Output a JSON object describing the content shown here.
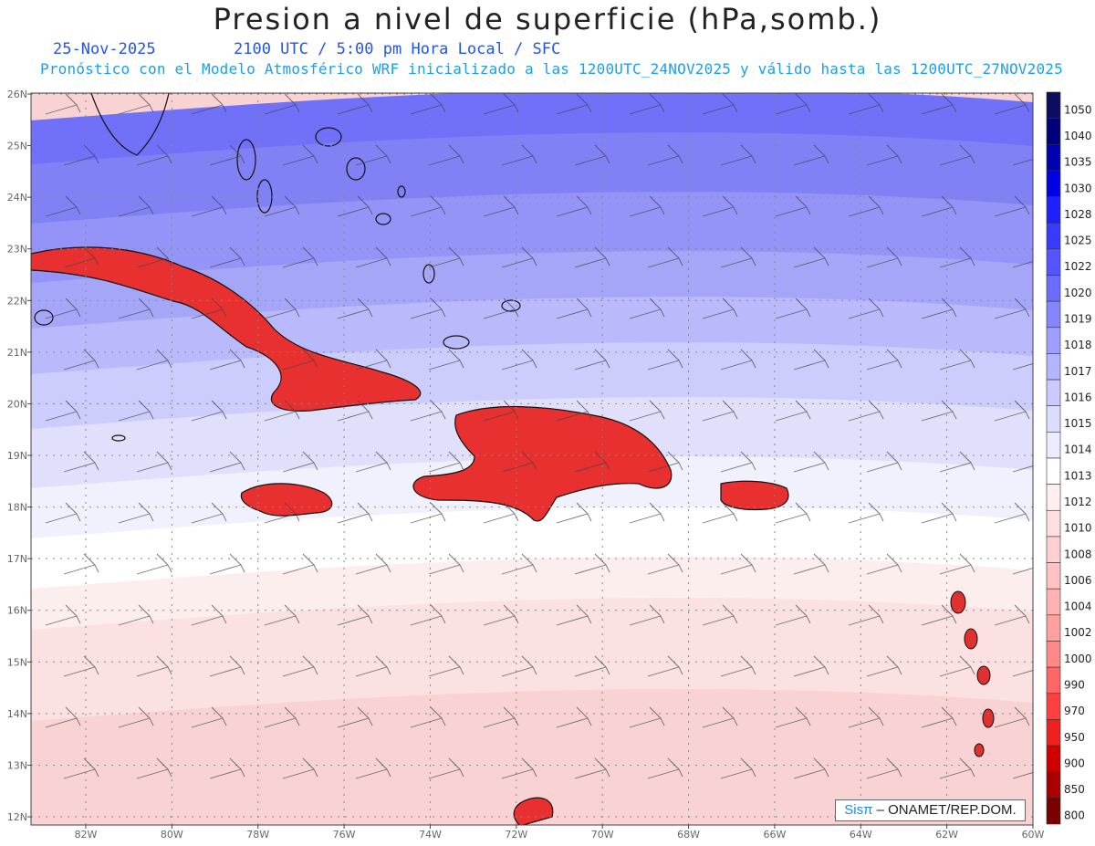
{
  "title": "Presion a nivel de superficie (hPa,somb.)",
  "date": "25-Nov-2025",
  "time_label": "2100 UTC / 5:00 pm Hora Local / SFC",
  "forecast_note": "Pronóstico con el Modelo Atmosférico WRF inicializado a las 1200UTC_24NOV2025 y válido hasta las  1200UTC_27NOV2025",
  "credit": {
    "brand": "Sisπ",
    "text": " – ONAMET/REP.DOM."
  },
  "lat_labels": [
    "26N",
    "25N",
    "24N",
    "23N",
    "22N",
    "21N",
    "20N",
    "19N",
    "18N",
    "17N",
    "16N",
    "15N",
    "14N",
    "13N",
    "12N"
  ],
  "lon_labels": [
    "82W",
    "80W",
    "78W",
    "76W",
    "74W",
    "72W",
    "70W",
    "68W",
    "66W",
    "64W",
    "62W",
    "60W"
  ],
  "colorbar": {
    "levels": [
      "1050",
      "1040",
      "1035",
      "1030",
      "1028",
      "1025",
      "1022",
      "1020",
      "1019",
      "1018",
      "1017",
      "1016",
      "1015",
      "1014",
      "1013",
      "1012",
      "1010",
      "1008",
      "1006",
      "1004",
      "1002",
      "1000",
      "990",
      "970",
      "950",
      "900",
      "850",
      "800"
    ],
    "colors": [
      "#0d0d5e",
      "#00007a",
      "#0000b0",
      "#0000e6",
      "#2020ff",
      "#3a3aff",
      "#5555ff",
      "#6c6cff",
      "#8585ff",
      "#9e9eff",
      "#b5b5ff",
      "#cacaff",
      "#dcdcff",
      "#ececff",
      "#ffffff",
      "#ffeeee",
      "#ffe0e0",
      "#ffd0d0",
      "#ffc2c2",
      "#ffb2b2",
      "#ffa0a0",
      "#ff8888",
      "#ff6666",
      "#ff4040",
      "#ee2020",
      "#d00000",
      "#a80000",
      "#7a0000"
    ]
  },
  "bands": [
    {
      "color": "#7070f8"
    },
    {
      "color": "#8181f6"
    },
    {
      "color": "#9393f8"
    },
    {
      "color": "#a6a6f9"
    },
    {
      "color": "#b9b9fb"
    },
    {
      "color": "#cccdfc"
    },
    {
      "color": "#e0e0fd"
    },
    {
      "color": "#f1f1fe"
    },
    {
      "color": "#ffffff"
    },
    {
      "color": "#fdeeee"
    },
    {
      "color": "#fbe1e1"
    },
    {
      "color": "#f9d3d3"
    }
  ]
}
